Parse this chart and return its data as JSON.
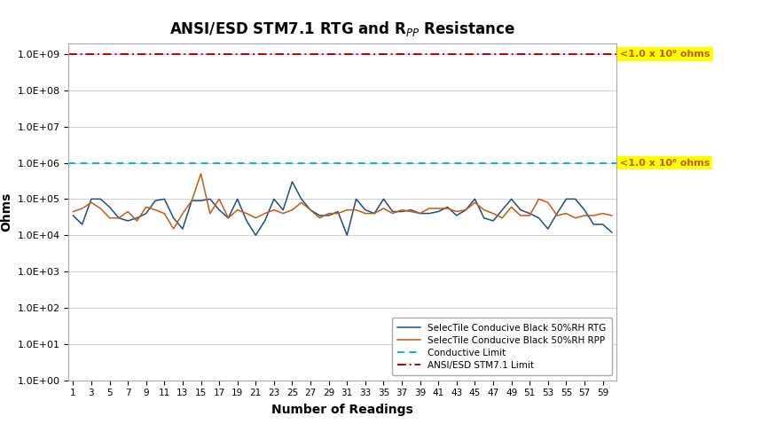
{
  "title": "ANSI/ESD STM7.1 RTG and R$_{PP}$ Resistance",
  "xlabel": "Number of Readings",
  "ylabel": "Ohms",
  "x_ticks": [
    1,
    3,
    5,
    7,
    9,
    11,
    13,
    15,
    17,
    19,
    21,
    23,
    25,
    27,
    29,
    31,
    33,
    35,
    37,
    39,
    41,
    43,
    45,
    47,
    49,
    51,
    53,
    55,
    57,
    59
  ],
  "conductive_limit": 1000000,
  "ansi_limit": 1000000000,
  "rtg_color": "#1f4e79",
  "rpp_color": "#c55a11",
  "conductive_color": "#00b0f0",
  "ansi_color": "#c00000",
  "annotation_text_color": "#c55a00",
  "bg_color": "#ffffff",
  "annotation_1e9": "<1.0 x 10⁹ ohms",
  "annotation_1e6": "<1.0 x 10⁶ ohms",
  "legend_rtg": "SelecTile Conducive Black 50%RH RTG",
  "legend_rpp": "SelecTile Conducive Black 50%RH RPP",
  "legend_conductive": "Conductive Limit",
  "legend_ansi": "ANSI/ESD STM7.1 Limit",
  "rtg_values": [
    35000,
    20000,
    100000,
    100000,
    60000,
    30000,
    25000,
    30000,
    40000,
    90000,
    100000,
    30000,
    15000,
    90000,
    90000,
    100000,
    50000,
    30000,
    100000,
    25000,
    10000,
    25000,
    100000,
    50000,
    300000,
    100000,
    50000,
    35000,
    35000,
    45000,
    10000,
    100000,
    50000,
    40000,
    100000,
    45000,
    45000,
    50000,
    40000,
    40000,
    45000,
    60000,
    35000,
    50000,
    100000,
    30000,
    25000,
    50000,
    100000,
    50000,
    40000,
    30000,
    15000,
    40000,
    100000,
    100000,
    50000,
    20000,
    20000,
    12000
  ],
  "rpp_values": [
    45000,
    55000,
    80000,
    55000,
    30000,
    30000,
    45000,
    25000,
    60000,
    50000,
    40000,
    15000,
    40000,
    90000,
    500000,
    40000,
    100000,
    30000,
    50000,
    40000,
    30000,
    40000,
    50000,
    40000,
    50000,
    80000,
    50000,
    30000,
    40000,
    40000,
    50000,
    50000,
    40000,
    40000,
    55000,
    40000,
    50000,
    45000,
    40000,
    55000,
    55000,
    55000,
    45000,
    50000,
    80000,
    50000,
    40000,
    30000,
    60000,
    35000,
    35000,
    100000,
    80000,
    35000,
    40000,
    30000,
    35000,
    35000,
    40000,
    35000
  ]
}
